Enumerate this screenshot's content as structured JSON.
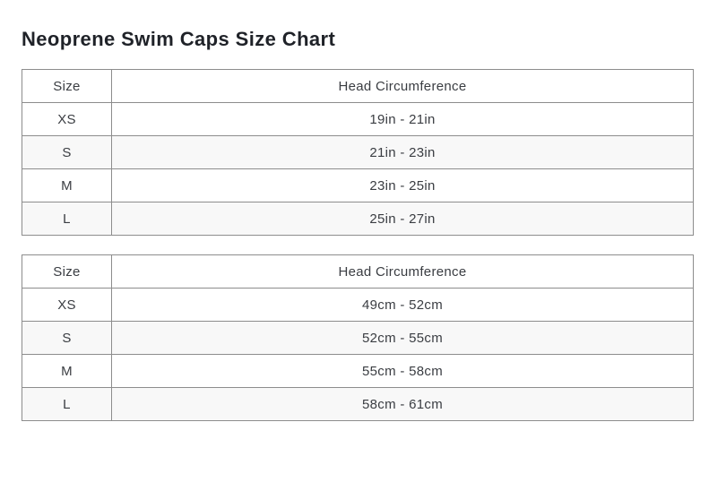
{
  "page": {
    "title": "Neoprene Swim Caps Size Chart"
  },
  "colors": {
    "page_bg": "#ffffff",
    "title_text": "#1f2228",
    "cell_text": "#3a3d42",
    "table_border": "#8d8d8d",
    "row_stripe_bg": "#f8f8f8"
  },
  "tables": [
    {
      "id": "inches",
      "headers": [
        "Size",
        "Head Circumference"
      ],
      "rows": [
        [
          "XS",
          "19in - 21in"
        ],
        [
          "S",
          "21in - 23in"
        ],
        [
          "M",
          "23in - 25in"
        ],
        [
          "L",
          "25in - 27in"
        ]
      ]
    },
    {
      "id": "centimeters",
      "headers": [
        "Size",
        "Head Circumference"
      ],
      "rows": [
        [
          "XS",
          "49cm - 52cm"
        ],
        [
          "S",
          "52cm - 55cm"
        ],
        [
          "M",
          "55cm - 58cm"
        ],
        [
          "L",
          "58cm - 61cm"
        ]
      ]
    }
  ]
}
